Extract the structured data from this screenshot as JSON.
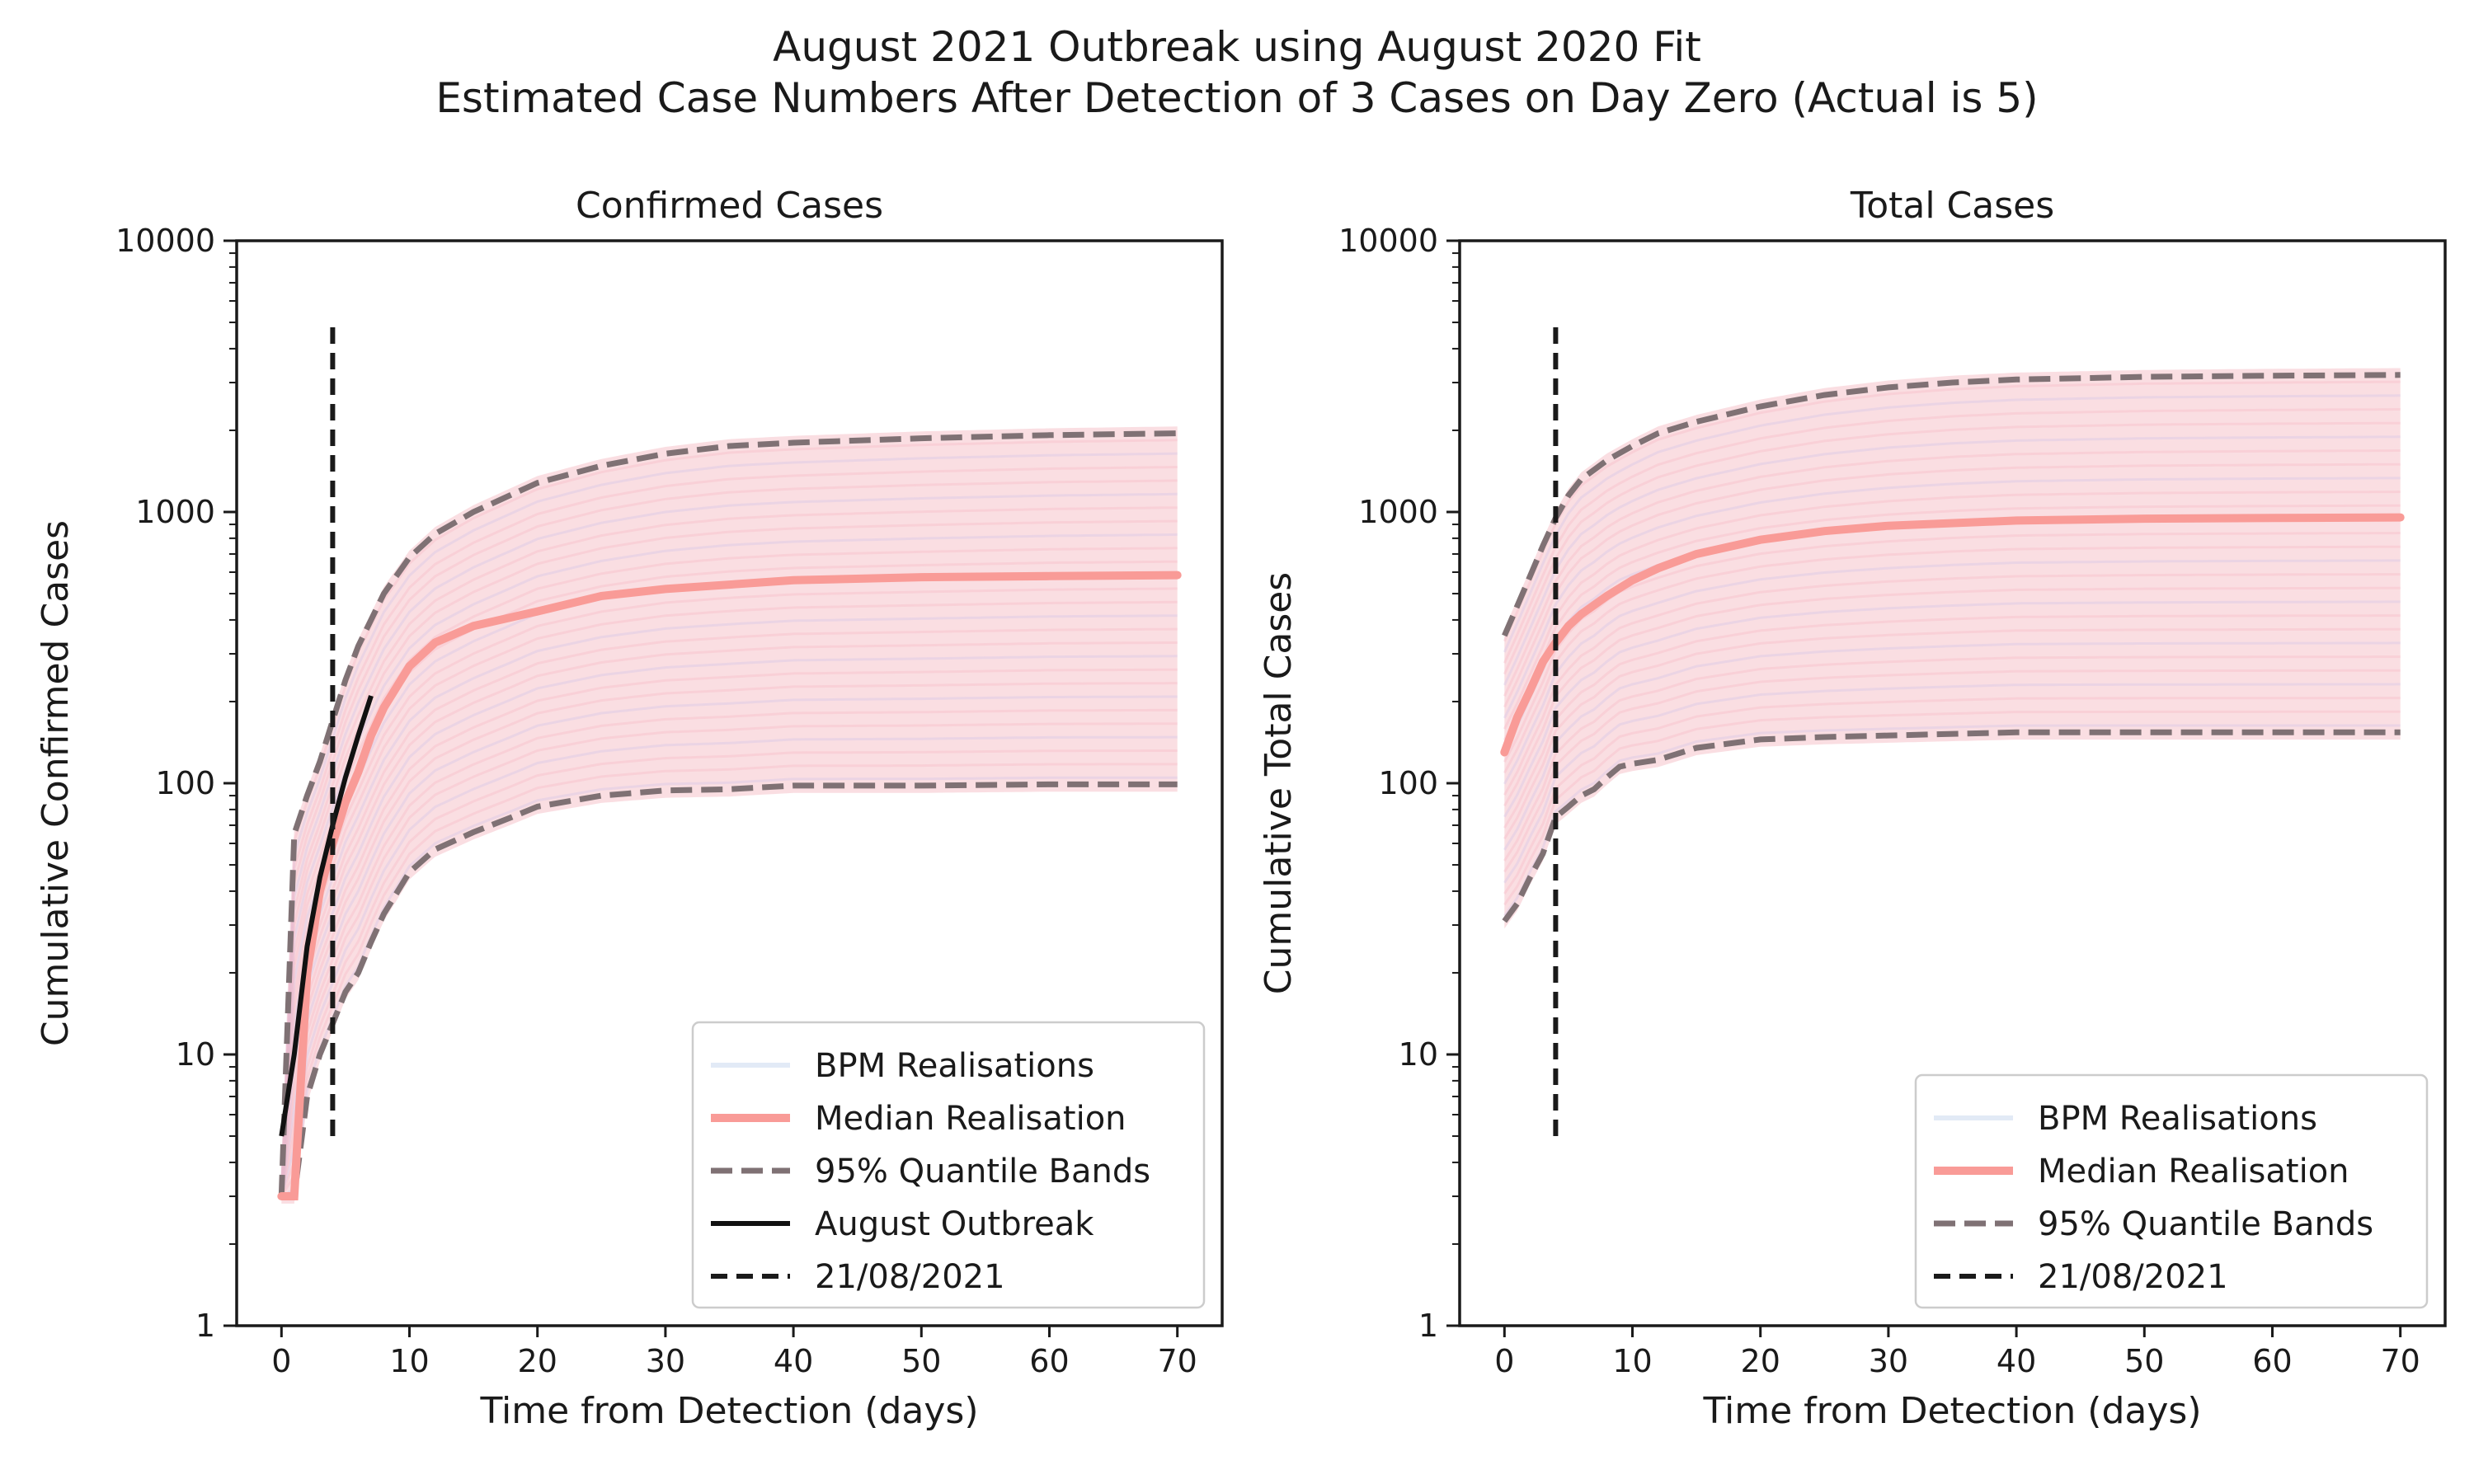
{
  "figure": {
    "title_line1": "August 2021 Outbreak using August 2020 Fit",
    "title_line2": "Estimated Case Numbers After Detection of 3 Cases on Day Zero (Actual is 5)"
  },
  "colors": {
    "realisations": "#f7c9d0",
    "realisations_alt": "#cfc3e8",
    "median": "#f99b97",
    "quantile": "#7f7174",
    "outbreak": "#111111",
    "vline": "#1a1a1a"
  },
  "chart_data": [
    {
      "type": "line",
      "title": "Confirmed Cases",
      "xlabel": "Time from Detection (days)",
      "ylabel": "Cumulative Confirmed Cases",
      "xlim": [
        -3.5,
        73.5
      ],
      "ylim": [
        1,
        10000
      ],
      "yscale": "log",
      "xticks": [
        0,
        10,
        20,
        30,
        40,
        50,
        60,
        70
      ],
      "yticks": [
        1,
        10,
        100,
        1000,
        10000
      ],
      "ytick_labels": [
        "1",
        "10",
        "100",
        "1000",
        "10000"
      ],
      "grid": false,
      "legend_position": "lower-right",
      "legend": [
        "BPM Realisations",
        "Median Realisation",
        "95% Quantile Bands",
        "August Outbreak",
        "21/08/2021"
      ],
      "series": [
        {
          "name": "Median Realisation",
          "x": [
            0,
            1,
            2,
            3,
            4,
            5,
            6,
            7,
            8,
            10,
            12,
            15,
            20,
            25,
            30,
            40,
            50,
            60,
            70
          ],
          "y": [
            3,
            3,
            20,
            40,
            60,
            85,
            110,
            150,
            190,
            270,
            330,
            380,
            430,
            490,
            520,
            560,
            575,
            580,
            585
          ]
        },
        {
          "name": "95% Quantile Upper",
          "x": [
            0,
            1,
            2,
            3,
            4,
            5,
            6,
            8,
            10,
            12,
            15,
            20,
            25,
            30,
            35,
            40,
            50,
            60,
            70
          ],
          "y": [
            3,
            65,
            90,
            120,
            170,
            240,
            320,
            500,
            680,
            830,
            1000,
            1280,
            1480,
            1640,
            1750,
            1800,
            1870,
            1920,
            1950
          ]
        },
        {
          "name": "95% Quantile Lower",
          "x": [
            0,
            1,
            2,
            3,
            4,
            5,
            6,
            7,
            8,
            10,
            12,
            15,
            18,
            20,
            25,
            30,
            35,
            40,
            50,
            60,
            70
          ],
          "y": [
            3,
            3,
            7,
            10,
            13,
            17,
            20,
            26,
            33,
            47,
            57,
            66,
            75,
            82,
            90,
            94,
            95,
            98,
            98,
            99,
            99
          ]
        },
        {
          "name": "August Outbreak",
          "x": [
            0,
            1,
            2,
            3,
            4,
            5,
            6,
            7
          ],
          "y": [
            5,
            10,
            25,
            45,
            70,
            105,
            150,
            210
          ]
        },
        {
          "name": "21/08/2021",
          "x": [
            4,
            4
          ],
          "y": [
            5,
            4800
          ]
        }
      ]
    },
    {
      "type": "line",
      "title": "Total Cases",
      "xlabel": "Time from Detection (days)",
      "ylabel": "Cumulative Total Cases",
      "xlim": [
        -3.5,
        73.5
      ],
      "ylim": [
        1,
        10000
      ],
      "yscale": "log",
      "xticks": [
        0,
        10,
        20,
        30,
        40,
        50,
        60,
        70
      ],
      "yticks": [
        1,
        10,
        100,
        1000,
        10000
      ],
      "ytick_labels": [
        "1",
        "10",
        "100",
        "1000",
        "10000"
      ],
      "grid": false,
      "legend_position": "lower-right",
      "legend": [
        "BPM Realisations",
        "Median Realisation",
        "95% Quantile Bands",
        "21/08/2021"
      ],
      "series": [
        {
          "name": "Median Realisation",
          "x": [
            0,
            1,
            2,
            3,
            4,
            5,
            6,
            8,
            10,
            12,
            15,
            20,
            25,
            30,
            40,
            50,
            60,
            70
          ],
          "y": [
            130,
            175,
            220,
            280,
            330,
            380,
            420,
            490,
            560,
            620,
            700,
            790,
            850,
            890,
            930,
            945,
            950,
            955
          ]
        },
        {
          "name": "95% Quantile Upper",
          "x": [
            0,
            1,
            2,
            3,
            4,
            5,
            6,
            8,
            10,
            12,
            15,
            20,
            25,
            30,
            35,
            40,
            50,
            60,
            70
          ],
          "y": [
            350,
            450,
            580,
            750,
            950,
            1150,
            1320,
            1550,
            1750,
            1950,
            2150,
            2450,
            2700,
            2880,
            3000,
            3080,
            3150,
            3180,
            3200
          ]
        },
        {
          "name": "95% Quantile Lower",
          "x": [
            0,
            1,
            2,
            3,
            4,
            5,
            6,
            7,
            8,
            9,
            10,
            12,
            15,
            20,
            25,
            30,
            40,
            50,
            60,
            70
          ],
          "y": [
            31,
            36,
            45,
            55,
            75,
            82,
            90,
            95,
            105,
            115,
            118,
            122,
            135,
            145,
            148,
            150,
            154,
            154,
            154,
            154
          ]
        },
        {
          "name": "21/08/2021",
          "x": [
            4,
            4
          ],
          "y": [
            5,
            4800
          ]
        }
      ]
    }
  ]
}
